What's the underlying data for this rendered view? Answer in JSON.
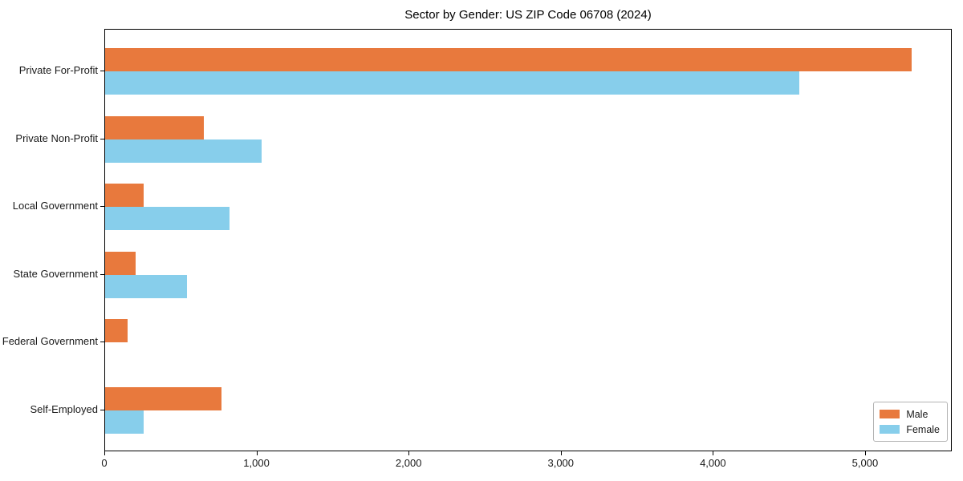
{
  "figure": {
    "background": "#ffffff",
    "frame_color": "#000000"
  },
  "chart_data": {
    "type": "bar",
    "orientation": "horizontal",
    "title": "Sector by Gender: US ZIP Code 06708 (2024)",
    "categories": [
      "Private For-Profit",
      "Private Non-Profit",
      "Local Government",
      "State Government",
      "Federal Government",
      "Self-Employed"
    ],
    "series": [
      {
        "name": "Male",
        "color": "#e8793d",
        "values": [
          5300,
          650,
          255,
          200,
          150,
          765
        ]
      },
      {
        "name": "Female",
        "color": "#87ceeb",
        "values": [
          4560,
          1030,
          815,
          540,
          0,
          255
        ]
      }
    ],
    "xlabel": "",
    "ylabel": "",
    "xlim": [
      0,
      5570
    ],
    "xticks": [
      0,
      1000,
      2000,
      3000,
      4000,
      5000
    ],
    "xtick_labels": [
      "0",
      "1,000",
      "2,000",
      "3,000",
      "4,000",
      "5,000"
    ],
    "grid": false,
    "legend": {
      "position": "lower right",
      "entries": [
        "Male",
        "Female"
      ]
    }
  }
}
